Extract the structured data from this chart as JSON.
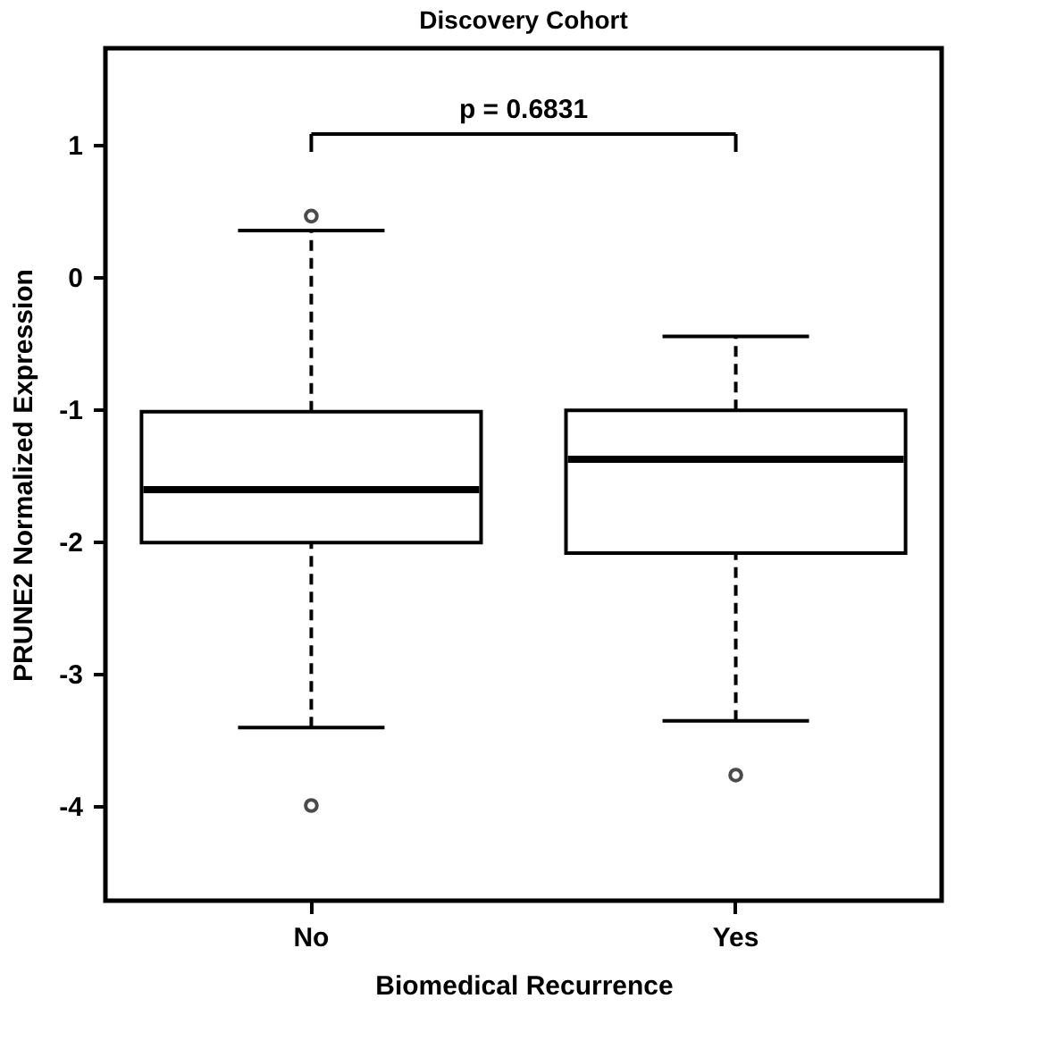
{
  "chart_data": {
    "type": "box",
    "title": "Discovery Cohort",
    "xlabel": "Biomedical Recurrence",
    "ylabel": "PRUNE2 Normalized Expression",
    "categories": [
      "No",
      "Yes"
    ],
    "boxes": [
      {
        "low": -3.41,
        "q1": -2.01,
        "median": -1.61,
        "q3": -1.02,
        "high": 0.35,
        "outliers": [
          0.46,
          -4.0
        ]
      },
      {
        "low": -3.36,
        "q1": -2.09,
        "median": -1.38,
        "q3": -1.01,
        "high": -0.45,
        "outliers": [
          -3.77
        ]
      }
    ],
    "ylim": [
      -4.72,
      1.73
    ],
    "yticks": [
      {
        "value": -4,
        "label": "-4"
      },
      {
        "value": -3,
        "label": "-3"
      },
      {
        "value": -2,
        "label": "-2"
      },
      {
        "value": -1,
        "label": "-1"
      },
      {
        "value": 0,
        "label": "0"
      },
      {
        "value": 1,
        "label": "1"
      }
    ],
    "grid": false,
    "annotations": [
      "p = 0.6831"
    ]
  }
}
